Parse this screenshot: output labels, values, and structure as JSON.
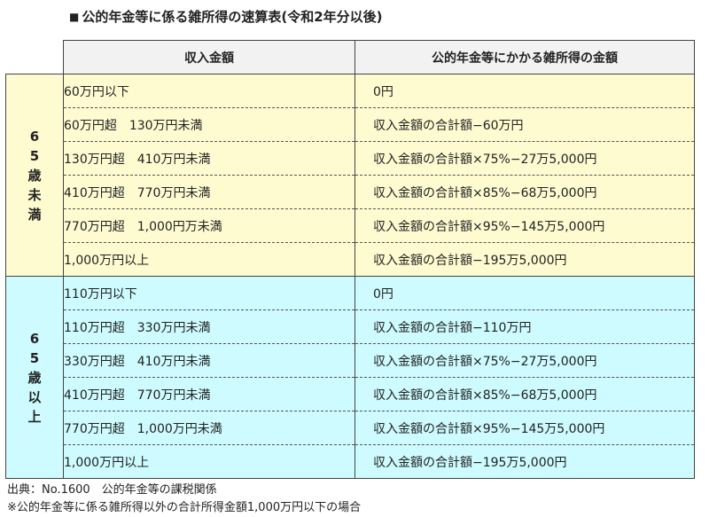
{
  "title": {
    "bullet": "■",
    "text": "公的年金等に係る雑所得の速算表(令和2年分以後)"
  },
  "table": {
    "headers": [
      "",
      "収入金額",
      "公的年金等にかかる雑所得の金額"
    ],
    "groups": [
      {
        "label_chars": [
          "6",
          "5",
          "歳",
          "未",
          "満"
        ],
        "label": "65歳未満",
        "color": "#fffbd1",
        "rows": [
          {
            "income": "60万円以下",
            "amount": "0円"
          },
          {
            "income": "60万円超　130万円未満",
            "amount": "収入金額の合計額−60万円"
          },
          {
            "income": "130万円超　410万円未満",
            "amount": "収入金額の合計額×75%−27万5,000円"
          },
          {
            "income": "410万円超　770万円未満",
            "amount": "収入金額の合計額×85%−68万5,000円"
          },
          {
            "income": "770万円超　1,000円万未満",
            "amount": "収入金額の合計額×95%−145万5,000円"
          },
          {
            "income": "1,000万円以上",
            "amount": "収入金額の合計額−195万5,000円"
          }
        ]
      },
      {
        "label_chars": [
          "6",
          "5",
          "歳",
          "以",
          "上"
        ],
        "label": "65歳以上",
        "color": "#cdfbff",
        "rows": [
          {
            "income": "110万円以下",
            "amount": "0円"
          },
          {
            "income": "110万円超　330万円未満",
            "amount": "収入金額の合計額−110万円"
          },
          {
            "income": "330万円超　410万円未満",
            "amount": "収入金額の合計額×75%−27万5,000円"
          },
          {
            "income": "410万円超　770万円未満",
            "amount": "収入金額の合計額×85%−68万5,000円"
          },
          {
            "income": "770万円超　1,000万円未満",
            "amount": "収入金額の合計額×95%−145万5,000円"
          },
          {
            "income": "1,000万円以上",
            "amount": "収入金額の合計額−195万5,000円"
          }
        ]
      }
    ]
  },
  "footer": {
    "source": "出典：No.1600　公的年金等の課税関係",
    "note": "※公的年金等に係る雑所得以外の合計所得金額1,000万円以下の場合"
  }
}
